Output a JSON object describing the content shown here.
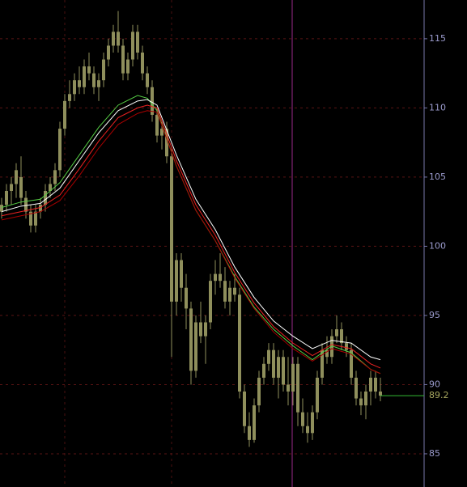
{
  "chart_data": {
    "type": "candlestick",
    "color": "#8f8f5c",
    "open": [
      102.5,
      103,
      104,
      104.5,
      105,
      103.5,
      102.5,
      101.5,
      102.5,
      103,
      104,
      104.5,
      105.5,
      108.5,
      110.5,
      111,
      112,
      111.5,
      113,
      112.5,
      111.5,
      112,
      113.5,
      114.5,
      115.5,
      114.5,
      112.5,
      113.5,
      115.5,
      114,
      112.5,
      111.5,
      109.5,
      108,
      108.5,
      106.5,
      96,
      99,
      97,
      95.5,
      91,
      94.5,
      93.5,
      94.5,
      97.5,
      98,
      97.5,
      96,
      97,
      96.5,
      89.5,
      87,
      86,
      88.5,
      90.5,
      91.5,
      92.5,
      90.5,
      92,
      90,
      89.5,
      91.5,
      88,
      87,
      86.5,
      88,
      90.5,
      92.5,
      92,
      93.5,
      94,
      93,
      92.5,
      90.5,
      89,
      88.5,
      89.5,
      90.5,
      89.5
    ],
    "high": [
      103.5,
      104.5,
      105,
      106,
      106.5,
      104,
      103,
      103,
      103.5,
      104.5,
      105,
      106,
      109,
      111,
      112,
      112.5,
      113,
      113.5,
      114,
      113,
      112.5,
      114,
      115,
      116,
      117,
      115,
      114,
      116,
      116,
      114.5,
      113,
      112,
      110,
      109,
      109,
      107,
      99.5,
      99.5,
      98,
      96,
      95,
      96,
      95,
      98,
      99,
      99.5,
      98.5,
      97.5,
      98,
      97,
      90,
      88,
      89,
      91,
      92,
      93,
      93,
      92.5,
      92.5,
      92,
      92,
      92,
      89,
      88,
      88.5,
      91,
      93,
      93.5,
      94,
      95,
      94.5,
      93.5,
      93,
      91,
      89.5,
      90,
      91,
      91,
      90.5
    ],
    "low": [
      102,
      102.5,
      103,
      103.5,
      103,
      102,
      101,
      101,
      102,
      102.5,
      103.5,
      104,
      105,
      108,
      110,
      110.5,
      111,
      111,
      112,
      111,
      110.5,
      111.5,
      113,
      114,
      114,
      112,
      112,
      113,
      113.5,
      112,
      111,
      109,
      107.5,
      107,
      106,
      92,
      95,
      96,
      94,
      90,
      90.5,
      93,
      91.5,
      94,
      96.5,
      97,
      95.5,
      95,
      96,
      89,
      86.5,
      85.5,
      85.8,
      88,
      90,
      91,
      90,
      89,
      89.5,
      88.5,
      88.5,
      87,
      86.5,
      85.8,
      86,
      87.5,
      90,
      91.5,
      91.5,
      93,
      92.5,
      92,
      90,
      88.5,
      87.8,
      87.5,
      88.5,
      89,
      88.8
    ],
    "close": [
      103,
      104,
      104.5,
      105.5,
      103.5,
      102.5,
      101.5,
      102.5,
      103,
      104,
      104.5,
      105.5,
      108.5,
      110.5,
      111,
      112,
      111.5,
      113,
      112.5,
      111.5,
      112,
      113.5,
      114.5,
      115.5,
      114.5,
      112.5,
      113.5,
      115.5,
      114,
      112.5,
      111.5,
      109.5,
      108,
      108.5,
      106.5,
      96,
      99,
      97,
      95.5,
      91,
      94.5,
      93.5,
      94.5,
      97.5,
      98,
      97.5,
      96,
      97,
      96.5,
      89.5,
      87,
      86,
      88.5,
      90.5,
      91.5,
      92.5,
      90.5,
      92,
      90,
      89.5,
      91.5,
      88,
      87,
      86.5,
      88,
      90.5,
      92.5,
      92,
      93.5,
      94,
      93,
      92.5,
      90.5,
      89,
      88.5,
      89.5,
      90.5,
      89.5,
      89.2
    ],
    "series": [
      {
        "color": "#55cc44",
        "x": [
          0,
          4,
          8,
          12,
          16,
          20,
          24,
          28,
          30,
          32,
          36,
          40,
          44,
          48,
          52,
          56,
          60,
          64,
          68,
          72,
          76,
          78
        ],
        "values": [
          102.8,
          103.2,
          103.4,
          104.6,
          106.6,
          108.6,
          110.2,
          110.9,
          110.7,
          109.8,
          105.8,
          102.6,
          100.4,
          97.8,
          95.6,
          94.0,
          92.8,
          91.8,
          92.8,
          92.3,
          91.1,
          90.8
        ]
      },
      {
        "color": "#ffffff",
        "x": [
          0,
          4,
          8,
          12,
          16,
          20,
          24,
          28,
          30,
          32,
          36,
          40,
          44,
          48,
          52,
          56,
          60,
          64,
          68,
          72,
          76,
          78
        ],
        "values": [
          102.5,
          102.9,
          103.1,
          104.2,
          106.2,
          108.2,
          109.8,
          110.5,
          110.6,
          110.2,
          106.6,
          103.4,
          101.2,
          98.5,
          96.3,
          94.6,
          93.5,
          92.6,
          93.2,
          93.0,
          92.0,
          91.8
        ]
      },
      {
        "color": "#ee2222",
        "x": [
          0,
          4,
          8,
          12,
          16,
          20,
          24,
          28,
          30,
          32,
          36,
          40,
          44,
          48,
          52,
          56,
          60,
          64,
          68,
          72,
          76,
          78
        ],
        "values": [
          102.2,
          102.5,
          102.8,
          103.7,
          105.6,
          107.6,
          109.3,
          110.0,
          110.2,
          110.0,
          106.2,
          103.0,
          100.8,
          98.1,
          95.9,
          94.2,
          93.0,
          92.1,
          92.9,
          92.6,
          91.5,
          91.2
        ]
      },
      {
        "color": "#aa0000",
        "x": [
          0,
          4,
          8,
          12,
          16,
          20,
          24,
          28,
          30,
          32,
          36,
          40,
          44,
          48,
          52,
          56,
          60,
          64,
          68,
          72,
          76,
          78
        ],
        "values": [
          101.9,
          102.2,
          102.5,
          103.3,
          105.1,
          107.1,
          108.8,
          109.6,
          109.8,
          109.7,
          105.8,
          102.6,
          100.4,
          97.7,
          95.5,
          93.8,
          92.6,
          91.7,
          92.6,
          92.2,
          91.1,
          90.8
        ]
      }
    ],
    "last_price": 89.2,
    "last_price_color": "#a8a860",
    "ylim": [
      82.6,
      117.8
    ],
    "yticks": [
      85,
      90,
      95,
      100,
      105,
      110,
      115
    ],
    "grid": true
  }
}
